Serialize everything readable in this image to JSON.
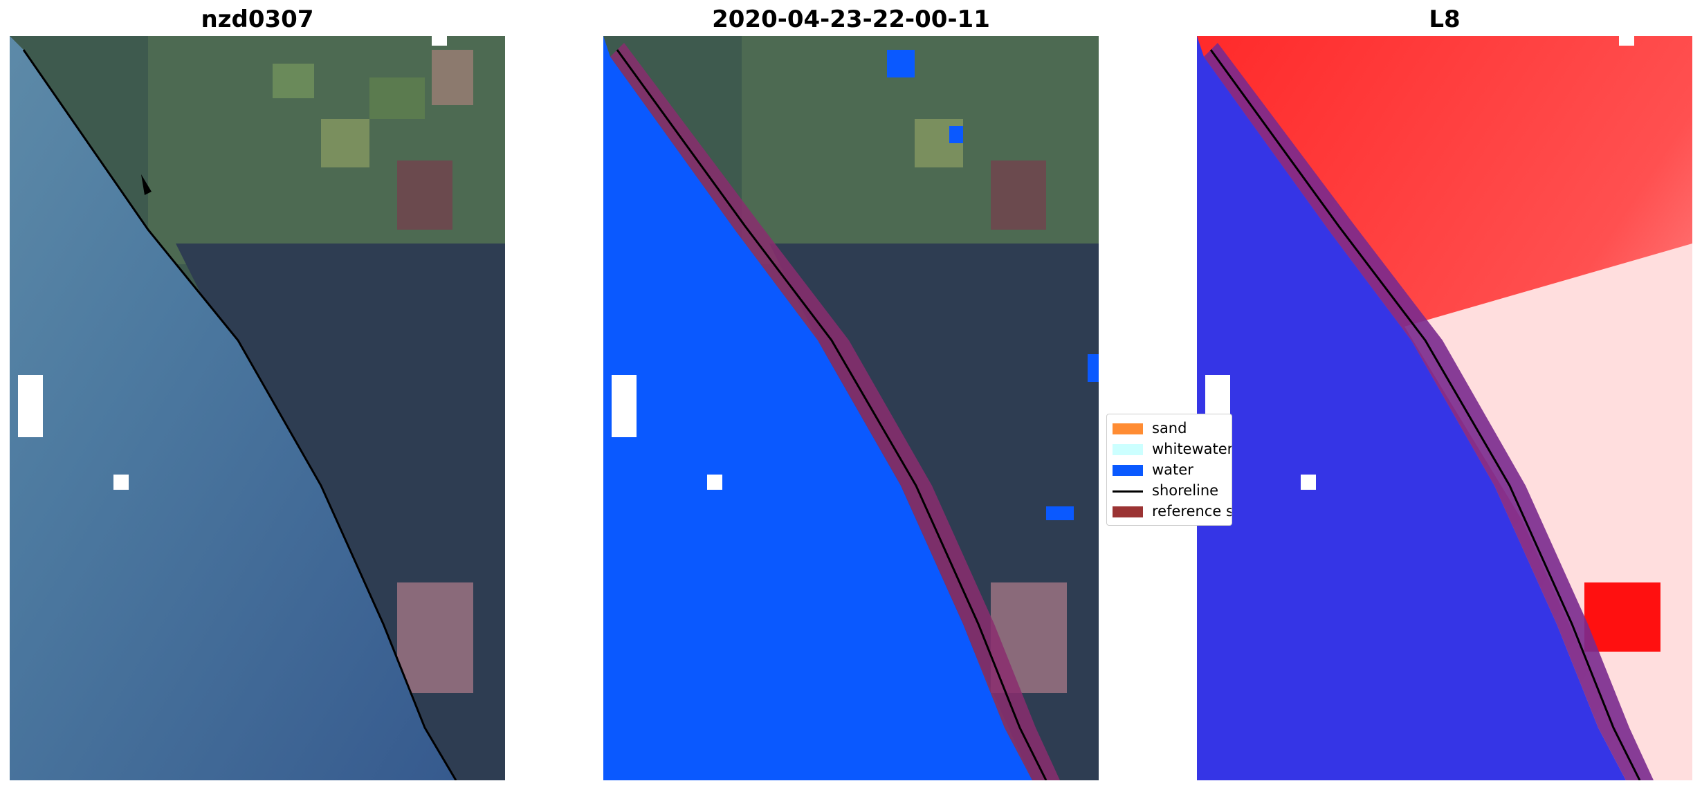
{
  "panels": [
    {
      "title": "nzd0307"
    },
    {
      "title": "2020-04-23-22-00-11"
    },
    {
      "title": "L8"
    }
  ],
  "legend": {
    "items": [
      {
        "label": "sand",
        "color": "#ff8c33",
        "kind": "patch"
      },
      {
        "label": "whitewater",
        "color": "#ccffff",
        "kind": "patch"
      },
      {
        "label": "water",
        "color": "#0a59ff",
        "kind": "patch"
      },
      {
        "label": "shoreline",
        "color": "#000000",
        "kind": "line"
      },
      {
        "label": "reference shoreline buffer",
        "color": "#9b3333",
        "kind": "patch"
      }
    ]
  },
  "colors": {
    "sea": "#3d5f94",
    "land_dark": "#2f3e52",
    "water_class": "#0a59ff",
    "buffer": "#8a2d6e",
    "index_water": "#3535e6",
    "index_land": "#ff2020"
  }
}
